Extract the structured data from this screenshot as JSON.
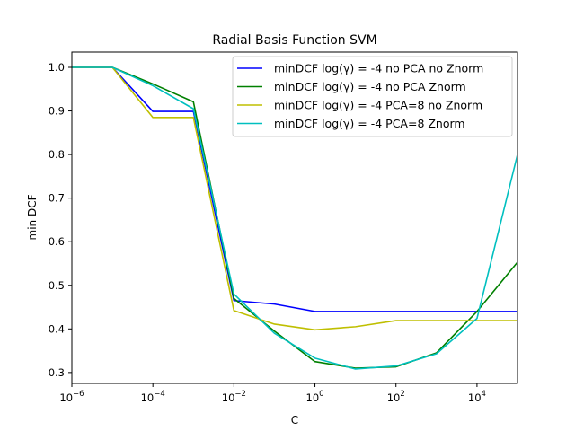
{
  "chart_data": {
    "type": "line",
    "title": "Radial Basis Function SVM",
    "xlabel": "C",
    "ylabel": "min DCF",
    "xscale": "log",
    "xlim": [
      1e-06,
      100000
    ],
    "ylim": [
      0.275,
      1.035
    ],
    "x": [
      1e-06,
      1e-05,
      0.0001,
      0.001,
      0.01,
      0.1,
      1,
      10,
      100,
      1000,
      10000,
      100000
    ],
    "x_ticks": [
      {
        "value": 1e-06,
        "base": "10",
        "exp": "−6"
      },
      {
        "value": 0.0001,
        "base": "10",
        "exp": "−4"
      },
      {
        "value": 0.01,
        "base": "10",
        "exp": "−2"
      },
      {
        "value": 1,
        "base": "10",
        "exp": "0"
      },
      {
        "value": 100,
        "base": "10",
        "exp": "2"
      },
      {
        "value": 10000,
        "base": "10",
        "exp": "4"
      }
    ],
    "y_ticks": [
      {
        "value": 0.3,
        "label": "0.3"
      },
      {
        "value": 0.4,
        "label": "0.4"
      },
      {
        "value": 0.5,
        "label": "0.5"
      },
      {
        "value": 0.6,
        "label": "0.6"
      },
      {
        "value": 0.7,
        "label": "0.7"
      },
      {
        "value": 0.8,
        "label": "0.8"
      },
      {
        "value": 0.9,
        "label": "0.9"
      },
      {
        "value": 1.0,
        "label": "1.0"
      }
    ],
    "grid": false,
    "legend_position": "top-right",
    "series": [
      {
        "name": "minDCF log(γ) = -4 no PCA no Znorm",
        "color": "#0000ff",
        "values": [
          1.0,
          1.0,
          0.899,
          0.899,
          0.465,
          0.457,
          0.44,
          0.44,
          0.44,
          0.44,
          0.44,
          0.44
        ]
      },
      {
        "name": "minDCF log(γ) = -4 no PCA Znorm",
        "color": "#008000",
        "values": [
          1.0,
          1.0,
          0.962,
          0.921,
          0.47,
          0.395,
          0.325,
          0.31,
          0.313,
          0.345,
          0.44,
          0.553
        ]
      },
      {
        "name": "minDCF log(γ) = -4 PCA=8 no Znorm",
        "color": "#bfbf00",
        "values": [
          1.0,
          1.0,
          0.885,
          0.885,
          0.442,
          0.411,
          0.398,
          0.405,
          0.419,
          0.419,
          0.419,
          0.419
        ]
      },
      {
        "name": "minDCF log(γ) = -4 PCA=8 Znorm",
        "color": "#00bfbf",
        "values": [
          1.0,
          1.0,
          0.958,
          0.905,
          0.48,
          0.39,
          0.333,
          0.308,
          0.315,
          0.343,
          0.424,
          0.8
        ]
      }
    ]
  }
}
